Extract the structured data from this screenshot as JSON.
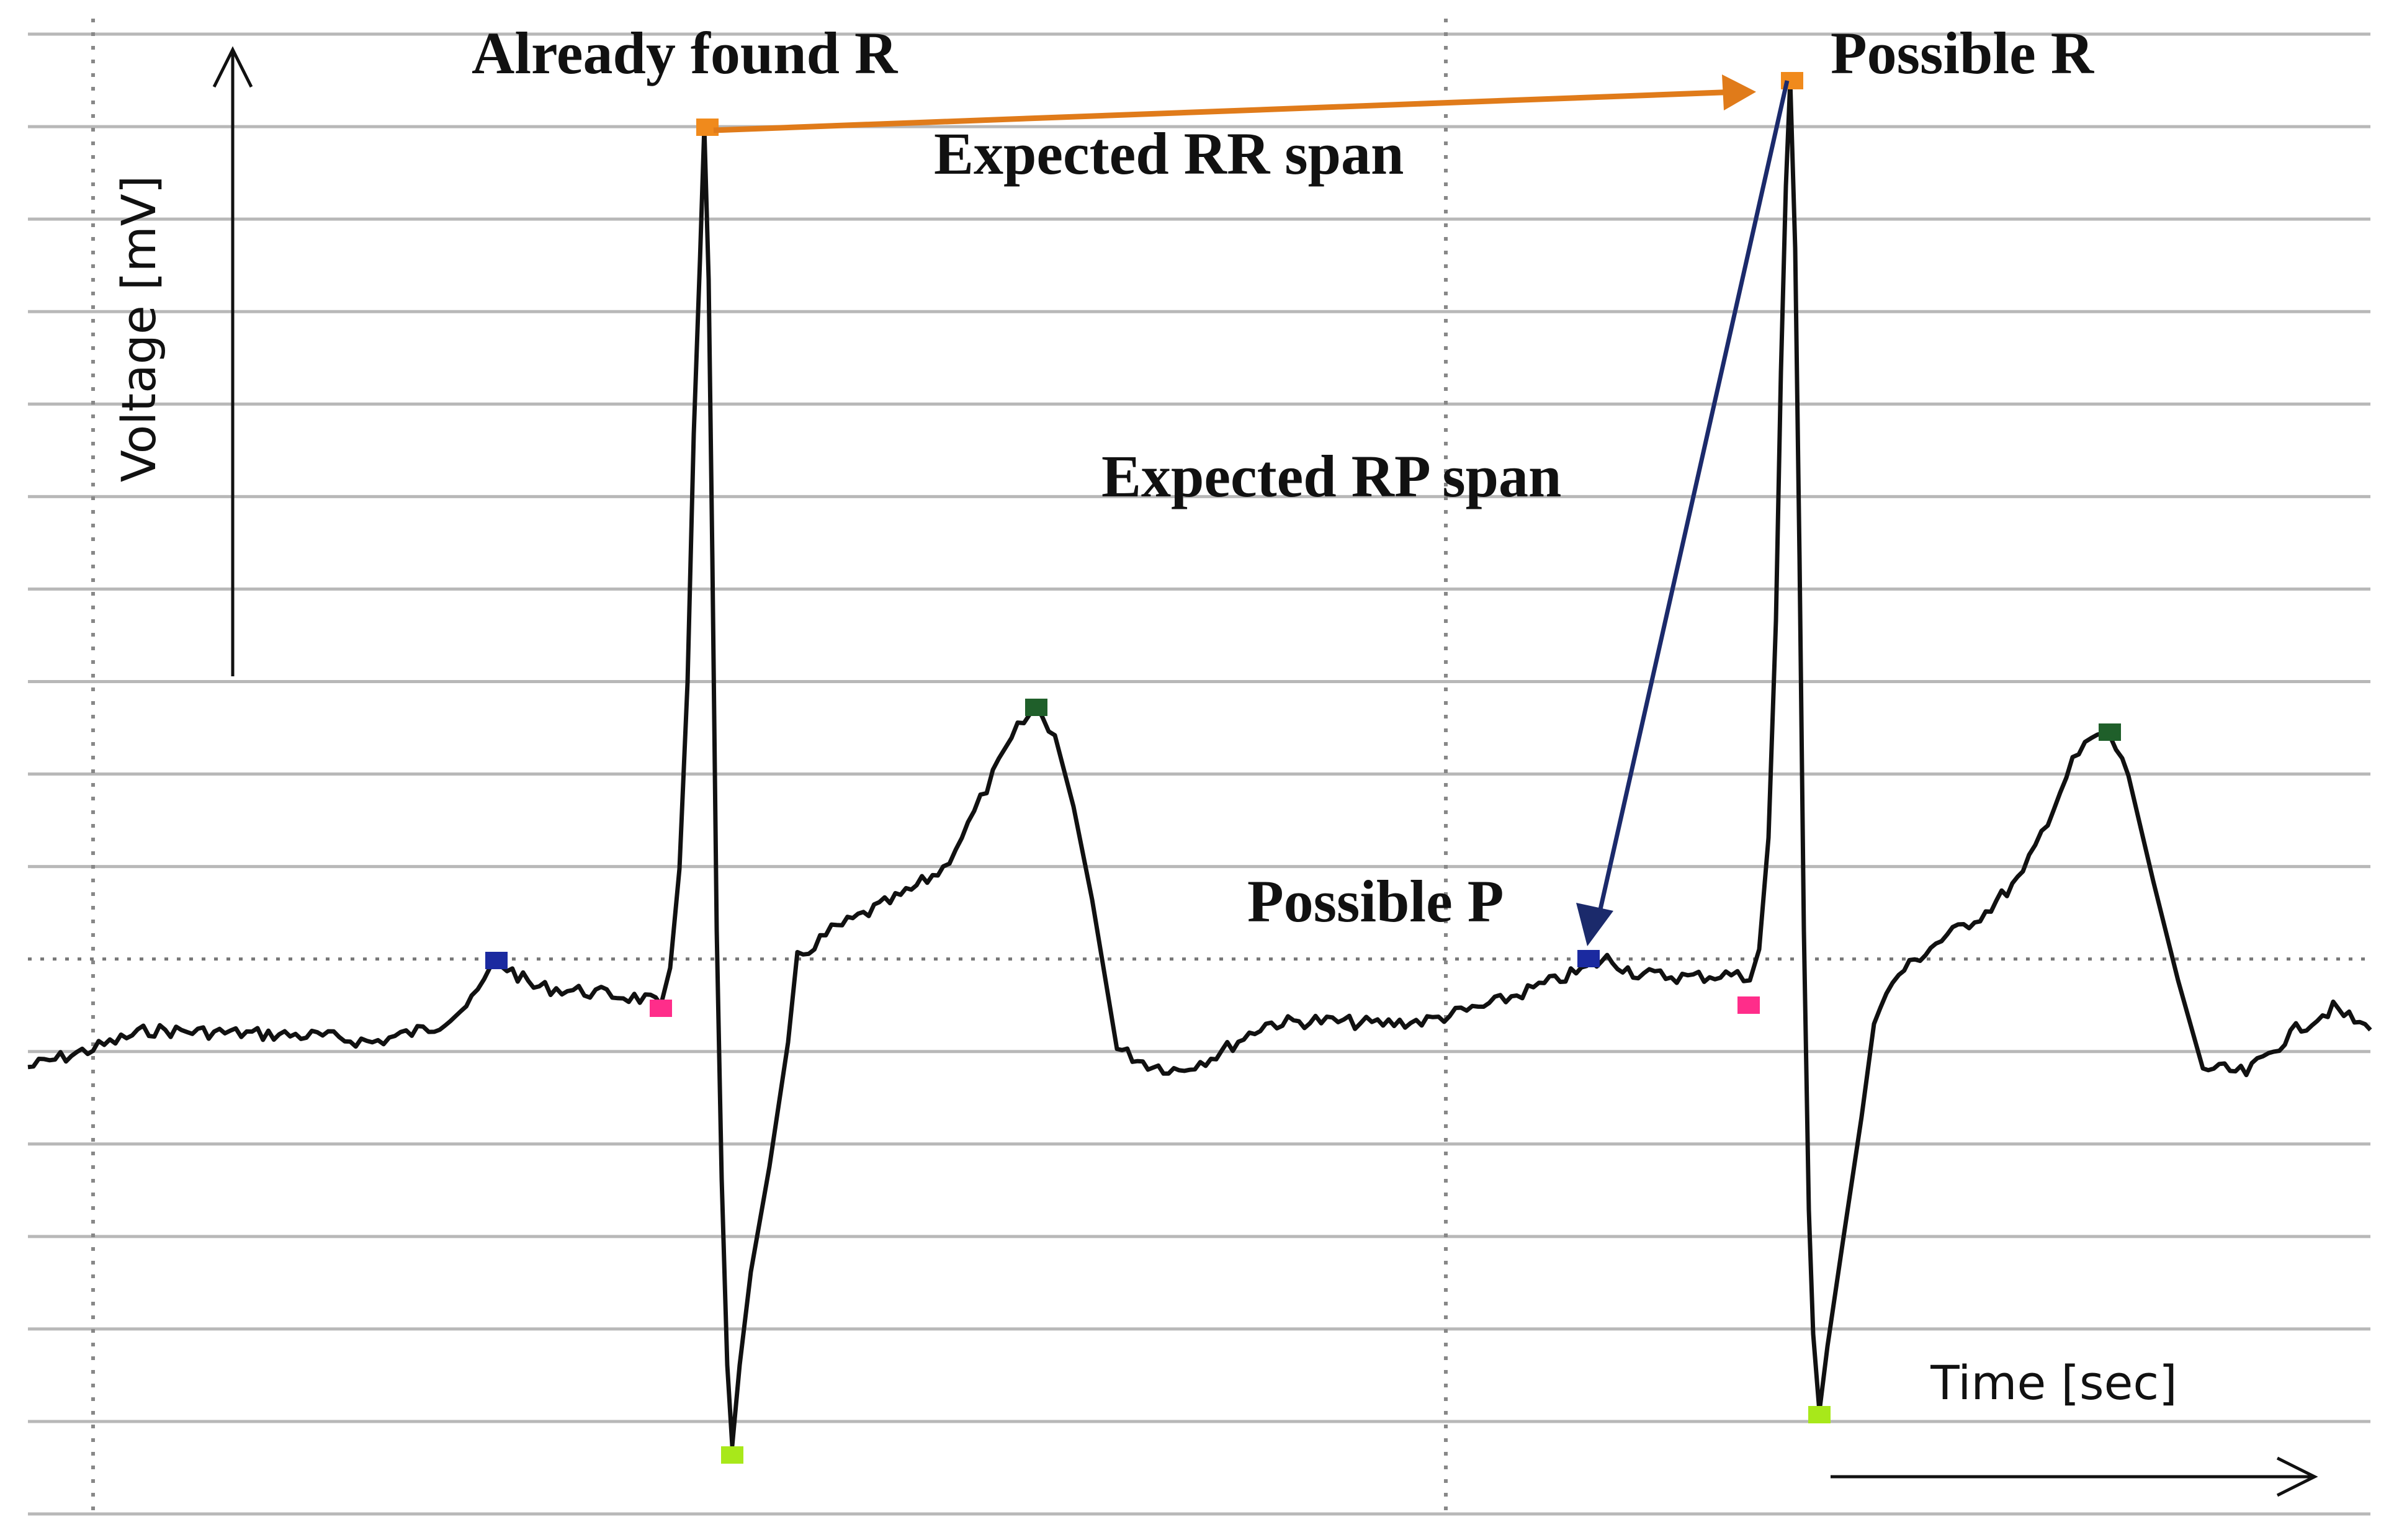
{
  "chart_data": {
    "type": "line",
    "title": "",
    "xlabel": "Time [sec]",
    "ylabel": "Voltage [mV]",
    "grid": true,
    "annotations": {
      "already_found_r": "Already found R",
      "possible_r": "Possible R",
      "expected_rr_span": "Expected RR span",
      "expected_rp_span": "Expected RP span",
      "possible_p": "Possible P"
    },
    "colors": {
      "trace": "#111111",
      "grid": "#b8b8b8",
      "rr_arrow": "#e07b1a",
      "rp_arrow": "#1b2a6b",
      "r_marker": "#f08a1c",
      "p_marker": "#1b2aa0",
      "q_marker": "#ff2d8a",
      "s_marker": "#a8e81a",
      "t_marker": "#1f5f2a"
    },
    "markers": [
      {
        "type": "P",
        "beat": 1
      },
      {
        "type": "Q",
        "beat": 1
      },
      {
        "type": "R",
        "beat": 1
      },
      {
        "type": "S",
        "beat": 1
      },
      {
        "type": "T",
        "beat": 1
      },
      {
        "type": "P",
        "beat": 2
      },
      {
        "type": "Q",
        "beat": 2
      },
      {
        "type": "R",
        "beat": 2
      },
      {
        "type": "S",
        "beat": 2
      },
      {
        "type": "T",
        "beat": 2
      }
    ]
  }
}
